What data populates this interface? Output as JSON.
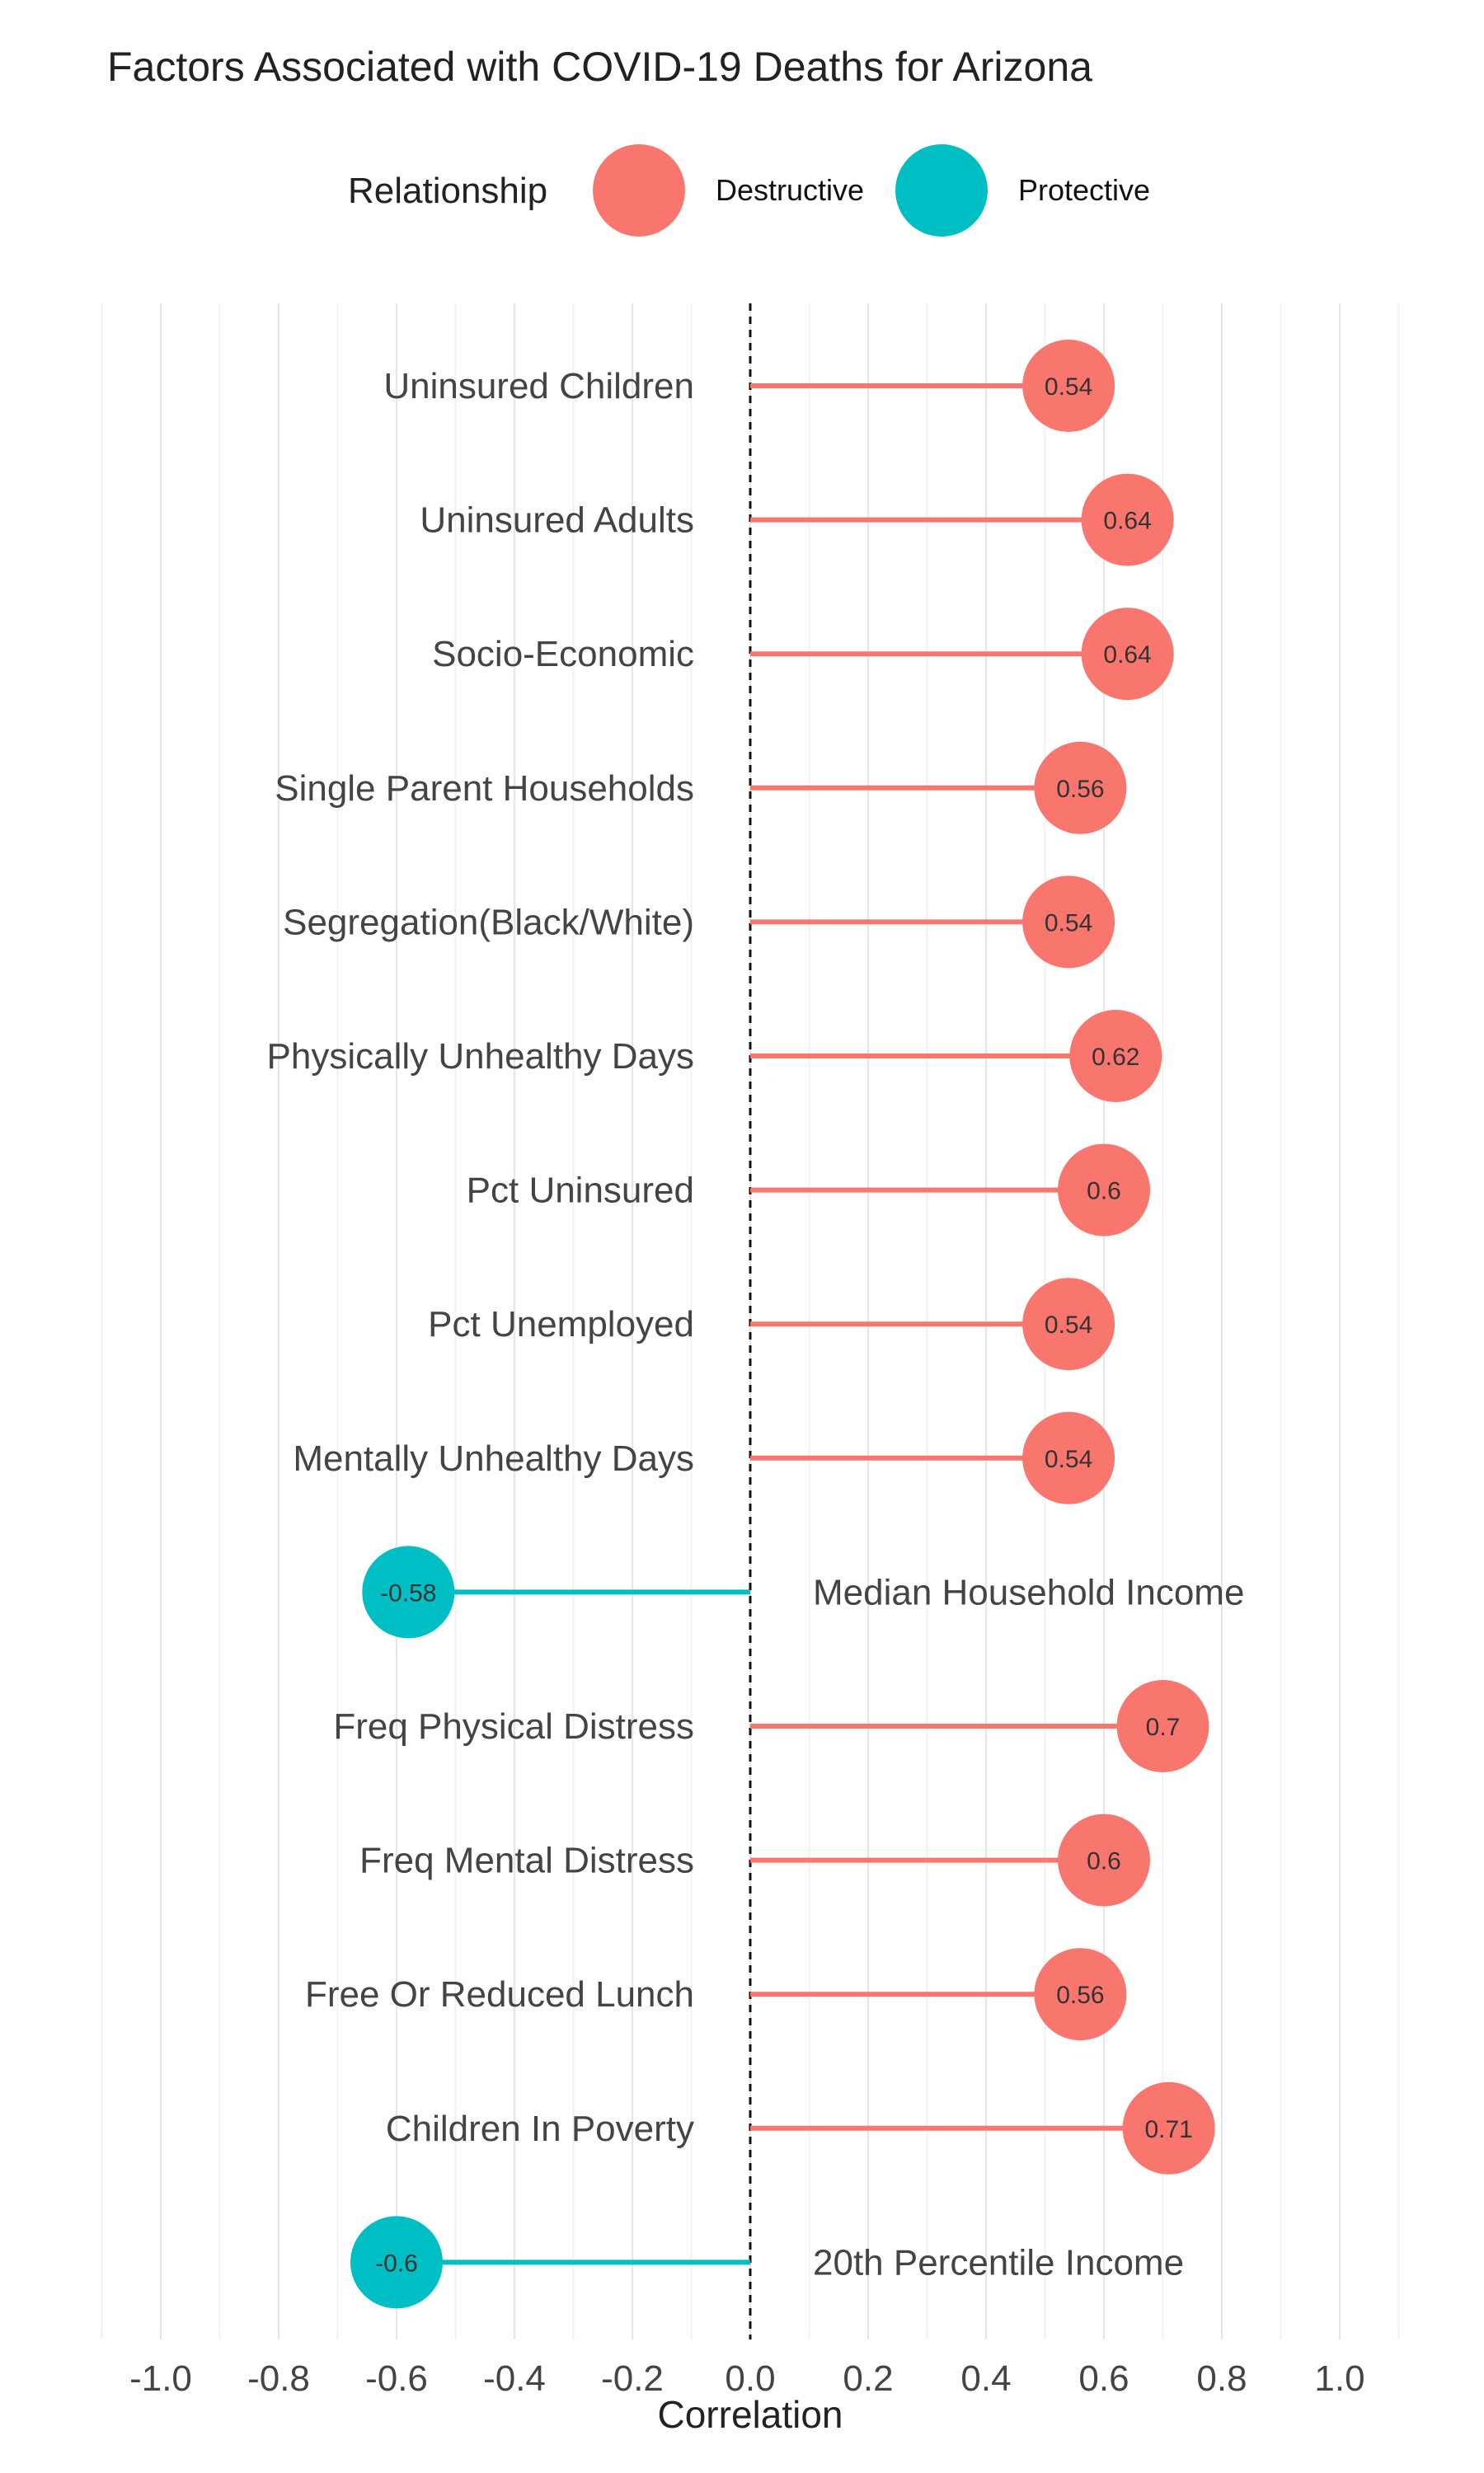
{
  "chart_data": {
    "type": "lollipop",
    "title": "Factors Associated with COVID-19 Deaths for Arizona",
    "xlabel": "Correlation",
    "ylabel": "",
    "xlim": [
      -1.1,
      1.1
    ],
    "x_ticks": [
      -1.0,
      -0.8,
      -0.6,
      -0.4,
      -0.2,
      0.0,
      0.2,
      0.4,
      0.6,
      0.8,
      1.0
    ],
    "x_tick_labels": [
      "-1.0",
      "-0.8",
      "-0.6",
      "-0.4",
      "-0.2",
      "0.0",
      "0.2",
      "0.4",
      "0.6",
      "0.8",
      "1.0"
    ],
    "reference_line": 0,
    "legend": {
      "title": "Relationship",
      "position": "top",
      "entries": [
        {
          "name": "Destructive",
          "color": "#F8766D"
        },
        {
          "name": "Protective",
          "color": "#00BFC4"
        }
      ]
    },
    "points": [
      {
        "label": "Uninsured Children",
        "value": 0.54,
        "value_label": "0.54",
        "relationship": "Destructive"
      },
      {
        "label": "Uninsured Adults",
        "value": 0.64,
        "value_label": "0.64",
        "relationship": "Destructive"
      },
      {
        "label": "Socio-Economic",
        "value": 0.64,
        "value_label": "0.64",
        "relationship": "Destructive"
      },
      {
        "label": "Single Parent Households",
        "value": 0.56,
        "value_label": "0.56",
        "relationship": "Destructive"
      },
      {
        "label": "Segregation(Black/White)",
        "value": 0.54,
        "value_label": "0.54",
        "relationship": "Destructive"
      },
      {
        "label": "Physically Unhealthy Days",
        "value": 0.62,
        "value_label": "0.62",
        "relationship": "Destructive"
      },
      {
        "label": "Pct Uninsured",
        "value": 0.6,
        "value_label": "0.6",
        "relationship": "Destructive"
      },
      {
        "label": "Pct Unemployed",
        "value": 0.54,
        "value_label": "0.54",
        "relationship": "Destructive"
      },
      {
        "label": "Mentally Unhealthy Days",
        "value": 0.54,
        "value_label": "0.54",
        "relationship": "Destructive"
      },
      {
        "label": "Median Household Income",
        "value": -0.58,
        "value_label": "-0.58",
        "relationship": "Protective"
      },
      {
        "label": "Freq Physical Distress",
        "value": 0.7,
        "value_label": "0.7",
        "relationship": "Destructive"
      },
      {
        "label": "Freq Mental Distress",
        "value": 0.6,
        "value_label": "0.6",
        "relationship": "Destructive"
      },
      {
        "label": "Free Or Reduced Lunch",
        "value": 0.56,
        "value_label": "0.56",
        "relationship": "Destructive"
      },
      {
        "label": "Children In Poverty",
        "value": 0.71,
        "value_label": "0.71",
        "relationship": "Destructive"
      },
      {
        "label": "20th Percentile Income",
        "value": -0.6,
        "value_label": "-0.6",
        "relationship": "Protective"
      }
    ],
    "grid": true
  }
}
